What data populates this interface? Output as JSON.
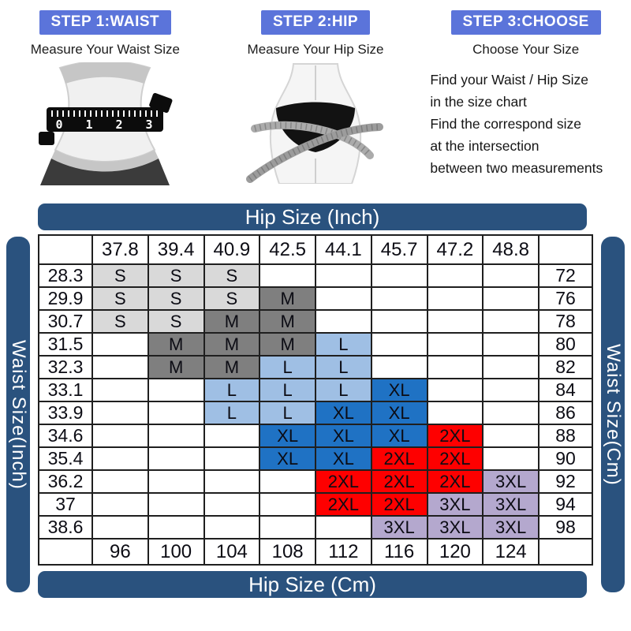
{
  "colors": {
    "step_badge": "#5b74da",
    "bar": "#2a527e"
  },
  "steps": [
    {
      "badge": "STEP 1:WAIST",
      "subtitle": "Measure Your Waist Size",
      "tape_numbers": [
        "0",
        "1",
        "2",
        "3"
      ]
    },
    {
      "badge": "STEP 2:HIP",
      "subtitle": "Measure Your Hip Size"
    },
    {
      "badge": "STEP 3:CHOOSE",
      "subtitle": "Choose Your Size",
      "instructions": [
        "Find your  Waist  / Hip Size",
        "in the size chart",
        "Find the correspond size",
        "at the intersection",
        "between  two measurements"
      ]
    }
  ],
  "chart_data": {
    "type": "table",
    "title_top": "Hip Size (Inch)",
    "title_bottom": "Hip Size (Cm)",
    "label_left": "Waist Size(Inch)",
    "label_right": "Waist Size(Cm)",
    "hip_inch": [
      "37.8",
      "39.4",
      "40.9",
      "42.5",
      "44.1",
      "45.7",
      "47.2",
      "48.8"
    ],
    "hip_cm": [
      "96",
      "100",
      "104",
      "108",
      "112",
      "116",
      "120",
      "124"
    ],
    "rows": [
      {
        "waist_inch": "28.3",
        "waist_cm": "72",
        "cells": [
          "S",
          "S",
          "S",
          "",
          "",
          "",
          "",
          ""
        ]
      },
      {
        "waist_inch": "29.9",
        "waist_cm": "76",
        "cells": [
          "S",
          "S",
          "S",
          "M",
          "",
          "",
          "",
          ""
        ]
      },
      {
        "waist_inch": "30.7",
        "waist_cm": "78",
        "cells": [
          "S",
          "S",
          "M",
          "M",
          "",
          "",
          "",
          ""
        ]
      },
      {
        "waist_inch": "31.5",
        "waist_cm": "80",
        "cells": [
          "",
          "M",
          "M",
          "M",
          "L",
          "",
          "",
          ""
        ]
      },
      {
        "waist_inch": "32.3",
        "waist_cm": "82",
        "cells": [
          "",
          "M",
          "M",
          "L",
          "L",
          "",
          "",
          ""
        ]
      },
      {
        "waist_inch": "33.1",
        "waist_cm": "84",
        "cells": [
          "",
          "",
          "L",
          "L",
          "L",
          "XL",
          "",
          ""
        ]
      },
      {
        "waist_inch": "33.9",
        "waist_cm": "86",
        "cells": [
          "",
          "",
          "L",
          "L",
          "XL",
          "XL",
          "",
          ""
        ]
      },
      {
        "waist_inch": "34.6",
        "waist_cm": "88",
        "cells": [
          "",
          "",
          "",
          "XL",
          "XL",
          "XL",
          "2XL",
          ""
        ]
      },
      {
        "waist_inch": "35.4",
        "waist_cm": "90",
        "cells": [
          "",
          "",
          "",
          "XL",
          "XL",
          "2XL",
          "2XL",
          ""
        ]
      },
      {
        "waist_inch": "36.2",
        "waist_cm": "92",
        "cells": [
          "",
          "",
          "",
          "",
          "2XL",
          "2XL",
          "2XL",
          "3XL"
        ]
      },
      {
        "waist_inch": "37",
        "waist_cm": "94",
        "cells": [
          "",
          "",
          "",
          "",
          "2XL",
          "2XL",
          "3XL",
          "3XL"
        ]
      },
      {
        "waist_inch": "38.6",
        "waist_cm": "98",
        "cells": [
          "",
          "",
          "",
          "",
          "",
          "3XL",
          "3XL",
          "3XL"
        ]
      }
    ],
    "size_colors": {
      "S": "#d9d9d9",
      "M": "#7f7f7f",
      "L": "#9fbfe4",
      "XL": "#1f72c4",
      "2XL": "#fe0000",
      "3XL": "#b4a8ce"
    }
  }
}
